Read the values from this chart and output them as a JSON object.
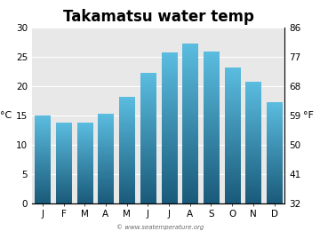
{
  "title": "Takamatsu water temp",
  "months": [
    "J",
    "F",
    "M",
    "A",
    "M",
    "J",
    "J",
    "A",
    "S",
    "O",
    "N",
    "D"
  ],
  "values_c": [
    14.9,
    13.7,
    13.7,
    15.3,
    18.1,
    22.3,
    25.8,
    27.3,
    25.9,
    23.2,
    20.7,
    17.3
  ],
  "ylim_c": [
    0,
    30
  ],
  "yticks_c": [
    0,
    5,
    10,
    15,
    20,
    25,
    30
  ],
  "yticks_f": [
    32,
    41,
    50,
    59,
    68,
    77,
    86
  ],
  "ylabel_left": "°C",
  "ylabel_right": "°F",
  "bg_color": "#e8e8e8",
  "fig_bg_color": "#ffffff",
  "bar_top_color": "#5bbde0",
  "bar_bottom_color": "#1a5a7a",
  "title_fontsize": 12,
  "tick_fontsize": 7.5,
  "label_fontsize": 8,
  "watermark": "© www.seatemperature.org"
}
